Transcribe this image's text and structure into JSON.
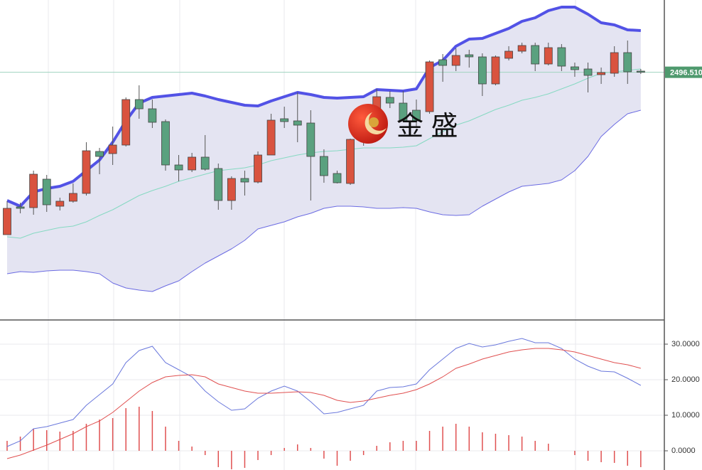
{
  "chart_data": [
    {
      "type": "candlestick",
      "ylim": [
        2392,
        2527
      ],
      "up_color": "#d9533f",
      "down_color": "#5aa17f",
      "open": [
        2428.0,
        2439.7,
        2439.4,
        2451.4,
        2440.0,
        2442.1,
        2445.4,
        2463.1,
        2462.2,
        2465.8,
        2485.0,
        2481.1,
        2475.7,
        2457.4,
        2455.3,
        2460.7,
        2455.9,
        2442.4,
        2451.7,
        2450.2,
        2461.6,
        2476.9,
        2476.0,
        2475.1,
        2461.0,
        2453.8,
        2449.6,
        2468.2,
        2479.0,
        2485.9,
        2483.5,
        2480.5,
        2479.9,
        2501.8,
        2499.4,
        2503.9,
        2503.0,
        2491.6,
        2502.4,
        2505.4,
        2507.8,
        2500.0,
        2506.9,
        2498.8,
        2497.9,
        2495.5,
        2496.1,
        2504.8,
        2497.0
      ],
      "high": [
        2442.1,
        2441.5,
        2455.0,
        2453.2,
        2443.6,
        2449.6,
        2467.0,
        2464.6,
        2473.6,
        2485.9,
        2491.0,
        2485.0,
        2476.6,
        2461.6,
        2462.5,
        2470.0,
        2458.0,
        2452.6,
        2455.0,
        2463.1,
        2479.0,
        2482.0,
        2488.0,
        2480.5,
        2464.0,
        2455.0,
        2468.5,
        2482.0,
        2489.5,
        2488.6,
        2488.6,
        2485.0,
        2501.5,
        2504.2,
        2506.6,
        2506.0,
        2504.5,
        2503.6,
        2507.5,
        2509.0,
        2509.0,
        2509.0,
        2508.4,
        2500.6,
        2500.6,
        2498.5,
        2507.5,
        2509.9,
        2497.9
      ],
      "low": [
        2428.0,
        2437.0,
        2436.4,
        2437.6,
        2438.2,
        2441.5,
        2444.5,
        2453.5,
        2457.4,
        2465.2,
        2476.9,
        2473.0,
        2455.0,
        2450.5,
        2454.4,
        2455.0,
        2438.5,
        2438.5,
        2444.5,
        2449.6,
        2461.6,
        2473.0,
        2467.0,
        2442.4,
        2449.9,
        2449.6,
        2449.0,
        2465.5,
        2477.5,
        2481.4,
        2475.4,
        2473.6,
        2479.0,
        2492.5,
        2497.0,
        2498.5,
        2486.5,
        2491.0,
        2501.5,
        2504.5,
        2497.0,
        2499.4,
        2497.0,
        2494.6,
        2488.0,
        2491.6,
        2494.6,
        2491.6,
        2495.8
      ],
      "close": [
        2439.1,
        2439.1,
        2453.5,
        2440.6,
        2442.1,
        2445.4,
        2463.4,
        2461.0,
        2465.8,
        2485.0,
        2481.1,
        2475.4,
        2457.4,
        2455.3,
        2460.7,
        2455.6,
        2442.4,
        2451.7,
        2450.2,
        2461.6,
        2476.3,
        2475.7,
        2474.2,
        2461.0,
        2452.9,
        2449.9,
        2468.2,
        2479.0,
        2486.2,
        2483.5,
        2476.0,
        2476.0,
        2500.9,
        2499.4,
        2503.6,
        2503.0,
        2491.6,
        2503.0,
        2505.4,
        2507.8,
        2500.0,
        2506.9,
        2499.1,
        2497.6,
        2495.2,
        2496.4,
        2504.8,
        2496.7,
        2496.51
      ],
      "bands": {
        "fill": "#e4e4f2",
        "upper": {
          "color": "#5252e6",
          "values": [
            2442.4,
            2440.0,
            2446.0,
            2447.5,
            2448.4,
            2450.5,
            2455.0,
            2459.5,
            2467.0,
            2476.0,
            2483.5,
            2485.9,
            2486.5,
            2487.1,
            2487.7,
            2486.5,
            2485.0,
            2483.8,
            2482.6,
            2482.3,
            2484.4,
            2486.2,
            2488.0,
            2487.1,
            2485.9,
            2485.6,
            2485.9,
            2486.2,
            2489.2,
            2488.9,
            2488.6,
            2489.5,
            2498.5,
            2501.5,
            2507.5,
            2510.5,
            2510.8,
            2512.9,
            2515.0,
            2518.0,
            2519.5,
            2522.5,
            2524.0,
            2524.0,
            2521.0,
            2517.4,
            2516.5,
            2514.4,
            2514.1
          ]
        },
        "middle": {
          "color": "#86d9c2",
          "values": [
            2427.1,
            2426.5,
            2428.6,
            2429.8,
            2431.0,
            2431.6,
            2433.4,
            2436.1,
            2438.5,
            2441.5,
            2444.5,
            2446.6,
            2448.4,
            2450.5,
            2452.0,
            2453.5,
            2455.0,
            2455.6,
            2456.2,
            2457.4,
            2459.2,
            2460.4,
            2461.6,
            2462.5,
            2463.1,
            2463.4,
            2464.0,
            2464.6,
            2464.6,
            2464.6,
            2464.9,
            2465.5,
            2468.5,
            2471.5,
            2474.2,
            2476.0,
            2478.4,
            2480.8,
            2482.6,
            2484.7,
            2485.9,
            2487.4,
            2489.5,
            2491.6,
            2494.0,
            2496.1,
            2496.7,
            2497.3,
            2497.9
          ]
        },
        "lower": {
          "color": "#6b6be2",
          "values": [
            2411.5,
            2412.4,
            2412.1,
            2412.7,
            2413.0,
            2413.0,
            2412.4,
            2411.5,
            2407.6,
            2405.5,
            2404.6,
            2404.0,
            2406.4,
            2408.5,
            2412.4,
            2416.0,
            2419.0,
            2422.0,
            2425.6,
            2430.4,
            2431.9,
            2433.4,
            2435.5,
            2437.0,
            2439.1,
            2440.0,
            2440.0,
            2439.7,
            2439.1,
            2439.1,
            2439.4,
            2439.1,
            2437.6,
            2436.4,
            2436.1,
            2436.4,
            2440.0,
            2443.0,
            2446.0,
            2448.4,
            2449.0,
            2449.6,
            2451.1,
            2455.0,
            2461.0,
            2469.4,
            2474.5,
            2479.0,
            2480.5
          ]
        }
      },
      "last_price": 2496.51,
      "last_price_label": "2496.510",
      "last_price_color": "#4f9a6e",
      "watermark": "金 盛"
    },
    {
      "type": "macd",
      "ylim": [
        -5.4,
        36.8
      ],
      "yticks": [
        {
          "value": 0,
          "label": "0.0000"
        },
        {
          "value": 10,
          "label": "10.0000"
        },
        {
          "value": 20,
          "label": "20.0000"
        },
        {
          "value": 30,
          "label": "30.0000"
        }
      ],
      "grid": true,
      "series": [
        {
          "color": "#6a78dc",
          "values": [
            1.2,
            2.8,
            6.2,
            6.8,
            7.8,
            8.8,
            12.8,
            15.8,
            18.8,
            24.8,
            28.2,
            29.4,
            24.8,
            22.8,
            20.8,
            16.8,
            13.8,
            11.4,
            11.8,
            14.8,
            16.8,
            18.2,
            16.8,
            13.8,
            10.4,
            10.8,
            11.8,
            12.8,
            16.8,
            17.8,
            18.0,
            18.8,
            22.8,
            25.8,
            28.8,
            30.2,
            29.2,
            29.8,
            30.8,
            31.6,
            30.4,
            30.4,
            28.8,
            25.8,
            23.8,
            22.4,
            22.2,
            20.4,
            18.4
          ]
        },
        {
          "color": "#e05050",
          "values": [
            -2.2,
            -1.2,
            0.2,
            1.6,
            3.2,
            4.8,
            6.8,
            8.4,
            10.8,
            13.8,
            16.8,
            19.2,
            20.8,
            21.2,
            21.4,
            20.8,
            18.8,
            17.8,
            16.8,
            16.2,
            16.2,
            16.4,
            16.6,
            16.4,
            15.6,
            14.2,
            13.6,
            14.0,
            14.8,
            15.6,
            16.2,
            17.2,
            18.8,
            20.8,
            23.2,
            24.4,
            25.8,
            26.8,
            27.8,
            28.4,
            28.8,
            28.8,
            28.4,
            27.8,
            26.8,
            25.8,
            24.8,
            24.2,
            23.2
          ]
        }
      ],
      "histogram": {
        "color": "#e05050",
        "values": [
          2.8,
          4.0,
          6.2,
          5.8,
          5.4,
          5.6,
          7.6,
          8.8,
          9.2,
          12.0,
          12.4,
          11.2,
          6.8,
          2.8,
          1.2,
          -1.2,
          -4.6,
          -5.2,
          -4.8,
          -2.6,
          -1.2,
          0.8,
          1.8,
          0.8,
          -2.2,
          -4.2,
          -2.8,
          -1.2,
          1.4,
          2.4,
          2.8,
          2.8,
          5.6,
          6.8,
          7.6,
          6.8,
          5.2,
          4.8,
          4.4,
          4.0,
          2.8,
          2.0,
          0,
          -1.2,
          -2.8,
          -3.2,
          -3.4,
          -4.2,
          -4.6
        ]
      }
    }
  ]
}
